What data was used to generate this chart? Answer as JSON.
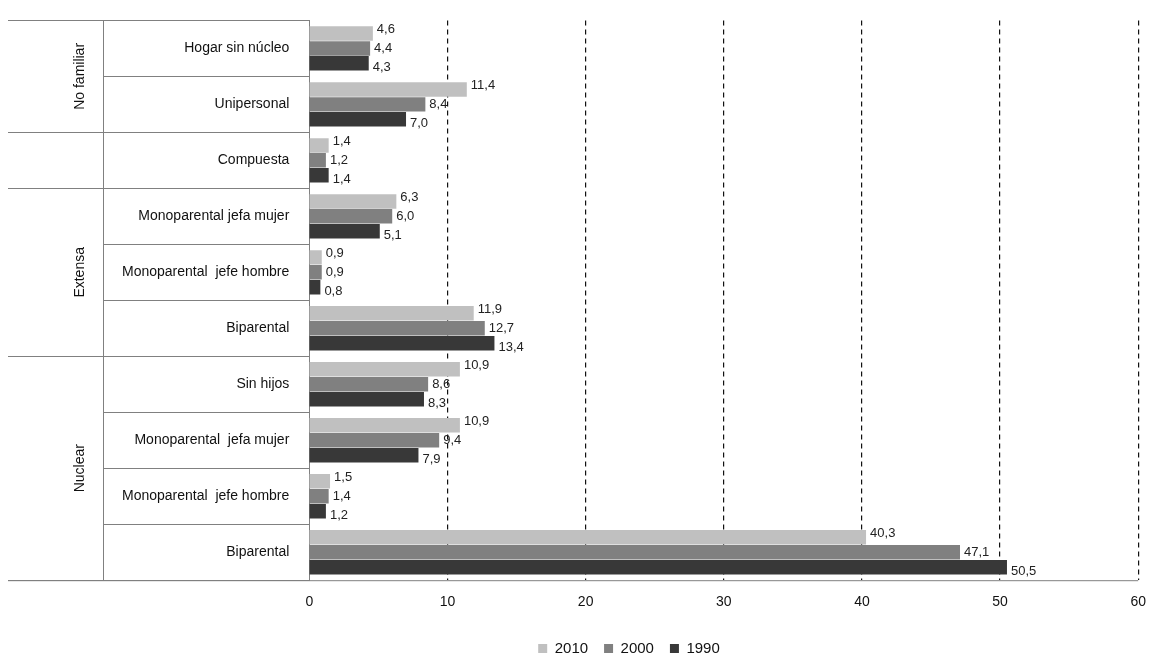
{
  "chart_data": {
    "type": "bar",
    "orientation": "horizontal",
    "categories": [
      "Hogar sin núcleo",
      "Unipersonal",
      "Compuesta",
      "Monoparental jefa mujer",
      "Monoparental  jefe hombre",
      "Biparental",
      "Sin hijos",
      "Monoparental  jefa mujer",
      "Monoparental  jefe hombre",
      "Biparental"
    ],
    "series": [
      {
        "name": "2010",
        "color": "#c0c0c0",
        "values": [
          4.6,
          11.4,
          1.4,
          6.3,
          0.9,
          11.9,
          10.9,
          10.9,
          1.5,
          40.3
        ],
        "value_labels": [
          "4,6",
          "11,4",
          "1,4",
          "6,3",
          "0,9",
          "11,9",
          "10,9",
          "10,9",
          "1,5",
          "40,3"
        ]
      },
      {
        "name": "2000",
        "color": "#808080",
        "values": [
          4.4,
          8.4,
          1.2,
          6.0,
          0.9,
          12.7,
          8.6,
          9.4,
          1.4,
          47.1
        ],
        "value_labels": [
          "4,4",
          "8,4",
          "1,2",
          "6,0",
          "0,9",
          "12,7",
          "8,6",
          "9,4",
          "1,4",
          "47,1"
        ]
      },
      {
        "name": "1990",
        "color": "#383838",
        "values": [
          4.3,
          7.0,
          1.4,
          5.1,
          0.8,
          13.4,
          8.3,
          7.9,
          1.2,
          50.5
        ],
        "value_labels": [
          "4,3",
          "7,0",
          "1,4",
          "5,1",
          "0,8",
          "13,4",
          "8,3",
          "7,9",
          "1,2",
          "50,5"
        ]
      }
    ],
    "xlim": [
      0,
      60
    ],
    "xticks": [
      0,
      10,
      20,
      30,
      40,
      50,
      60
    ],
    "grid": "x",
    "line_style": "dashed",
    "legend": "bottom",
    "annotations": [
      "No familiar",
      "Extensa",
      "Nuclear"
    ]
  }
}
